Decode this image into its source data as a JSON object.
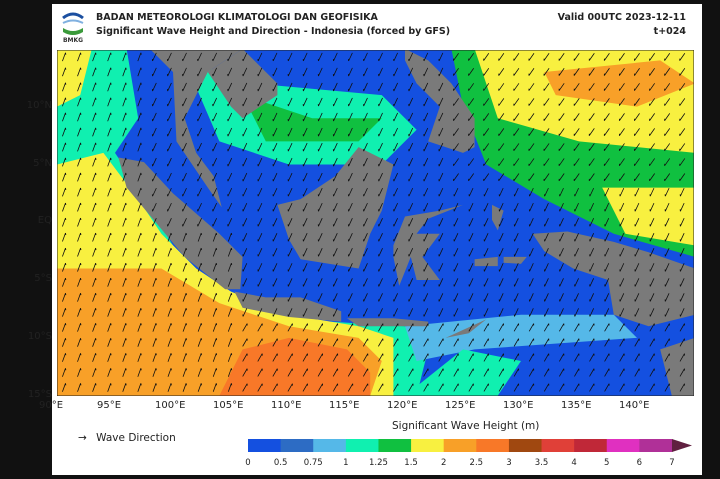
{
  "header": {
    "org": "BADAN METEOROLOGI KLIMATOLOGI DAN GEOFISIKA",
    "title": "Significant Wave Height and Direction - Indonesia (forced by GFS)",
    "valid": "Valid 00UTC 2023-12-11",
    "lead": "t+024",
    "logo_text": "BMKG"
  },
  "map": {
    "lat_labels": [
      "10°N",
      "5°N",
      "EQ",
      "5°S",
      "10°S",
      "15°S"
    ],
    "lon_labels": [
      "90°E",
      "95°E",
      "100°E",
      "105°E",
      "110°E",
      "115°E",
      "120°E",
      "125°E",
      "130°E",
      "135°E",
      "140°E"
    ],
    "land_color": "#7a7a7a"
  },
  "legend": {
    "arrow_label": "Wave Direction",
    "colorbar_title": "Significant Wave Height (m)",
    "ticks": [
      "0",
      "0.5",
      "0.75",
      "1",
      "1.25",
      "1.5",
      "2",
      "2.5",
      "3",
      "3.5",
      "4",
      "5",
      "6",
      "7"
    ],
    "colors": [
      "#1450e0",
      "#2d6cc4",
      "#55b8e8",
      "#10f0b0",
      "#10c040",
      "#f8f040",
      "#f8a028",
      "#f87828",
      "#a04810",
      "#e04038",
      "#c02838",
      "#e030c0",
      "#b03098",
      "#602040"
    ]
  }
}
